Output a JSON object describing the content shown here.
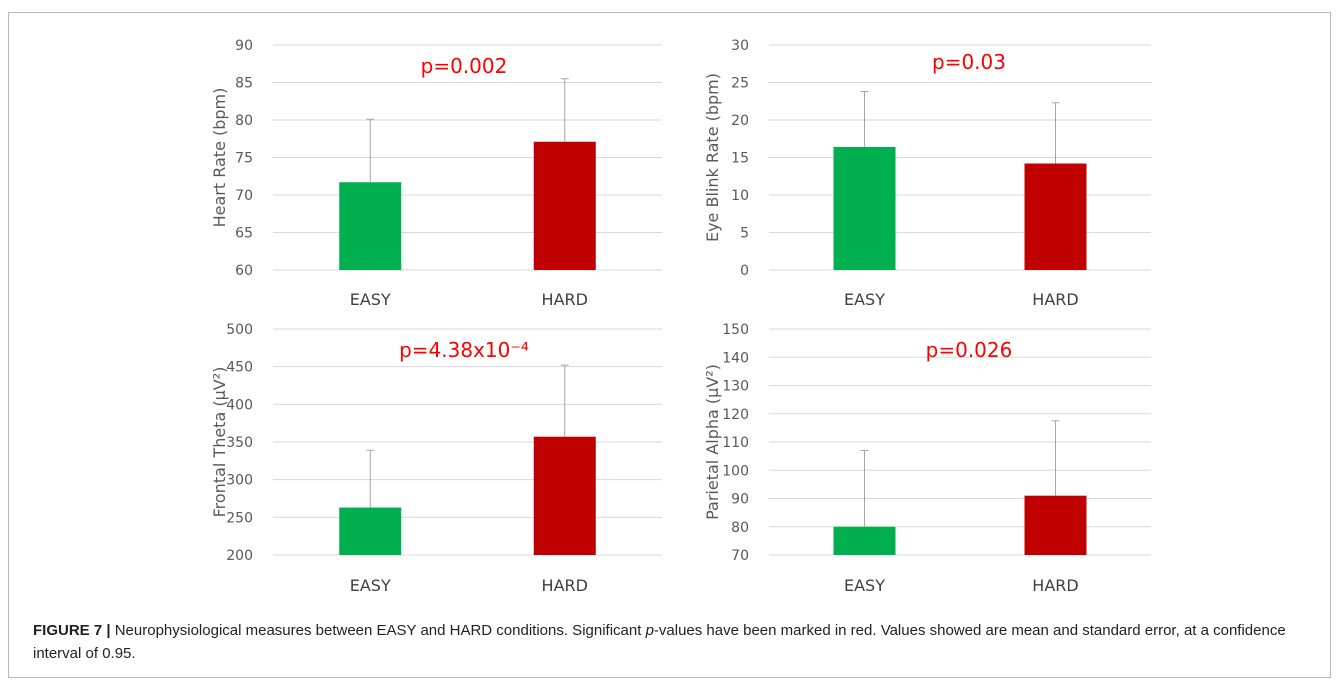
{
  "chart_data": [
    {
      "type": "bar",
      "categories": [
        "EASY",
        "HARD"
      ],
      "values": [
        71.7,
        77.1
      ],
      "error": [
        8.4,
        8.4
      ],
      "ylabel": "Heart Rate (bpm)",
      "ylim": [
        60,
        90
      ],
      "yticks": [
        "60",
        "65",
        "70",
        "75",
        "80",
        "85",
        "90"
      ],
      "annotation": "p=0.002",
      "grid": true
    },
    {
      "type": "bar",
      "categories": [
        "EASY",
        "HARD"
      ],
      "values": [
        16.4,
        14.2
      ],
      "error": [
        7.4,
        8.1
      ],
      "ylabel": "Eye Blink Rate (bpm)",
      "ylim": [
        0,
        30
      ],
      "yticks": [
        "0",
        "5",
        "10",
        "15",
        "20",
        "25",
        "30"
      ],
      "annotation": "p=0.03",
      "grid": true
    },
    {
      "type": "bar",
      "categories": [
        "EASY",
        "HARD"
      ],
      "values": [
        263,
        357
      ],
      "error": [
        76,
        95
      ],
      "ylabel": "Frontal Theta (µV²)",
      "ylim": [
        200,
        500
      ],
      "yticks": [
        "200",
        "250",
        "300",
        "350",
        "400",
        "450",
        "500"
      ],
      "annotation": "p=4.38x10⁻⁴",
      "grid": true
    },
    {
      "type": "bar",
      "categories": [
        "EASY",
        "HARD"
      ],
      "values": [
        80,
        91
      ],
      "error": [
        27,
        26.5
      ],
      "ylabel": "Parietal Alpha (µV²)",
      "ylim": [
        70,
        150
      ],
      "yticks": [
        "70",
        "80",
        "90",
        "100",
        "110",
        "120",
        "130",
        "140",
        "150"
      ],
      "annotation": "p=0.026",
      "grid": true
    }
  ],
  "colors": {
    "easy": "#00b050",
    "hard": "#c00000",
    "annotation": "#ff0000",
    "grid": "#d9d9d9",
    "errorbar": "#a6a6a6",
    "axis_text": "#595959"
  },
  "caption": {
    "label": "FIGURE 7 |",
    "part1": " Neurophysiological measures between EASY and HARD conditions. Significant ",
    "p_italic": "p",
    "part2": "-values have been marked in red. Values showed are mean and standard error, at a confidence interval of 0.95."
  }
}
